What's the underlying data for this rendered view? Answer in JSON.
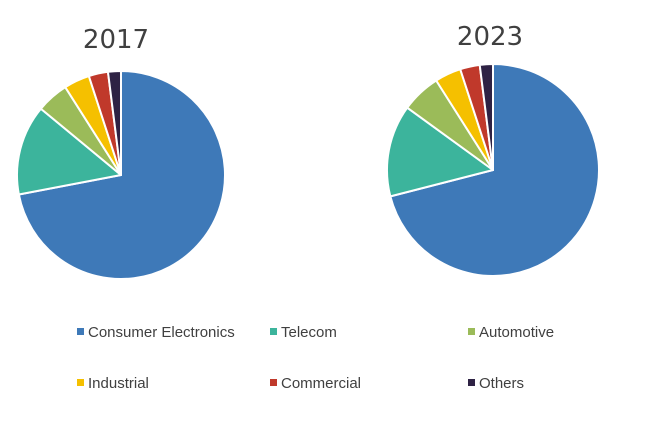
{
  "chart_data": {
    "type": "pie",
    "categories": [
      "Consumer Electronics",
      "Telecom",
      "Automotive",
      "Industrial",
      "Commercial",
      "Others"
    ],
    "colors": [
      "#3e79b8",
      "#3cb49c",
      "#9bbb59",
      "#f5c000",
      "#c0392b",
      "#2e2244"
    ],
    "pies": [
      {
        "title": "2017",
        "values": [
          72,
          14,
          5,
          4,
          3,
          2
        ]
      },
      {
        "title": "2023",
        "values": [
          71,
          14,
          6,
          4,
          3,
          2
        ]
      }
    ],
    "legend_placement": "bottom"
  }
}
